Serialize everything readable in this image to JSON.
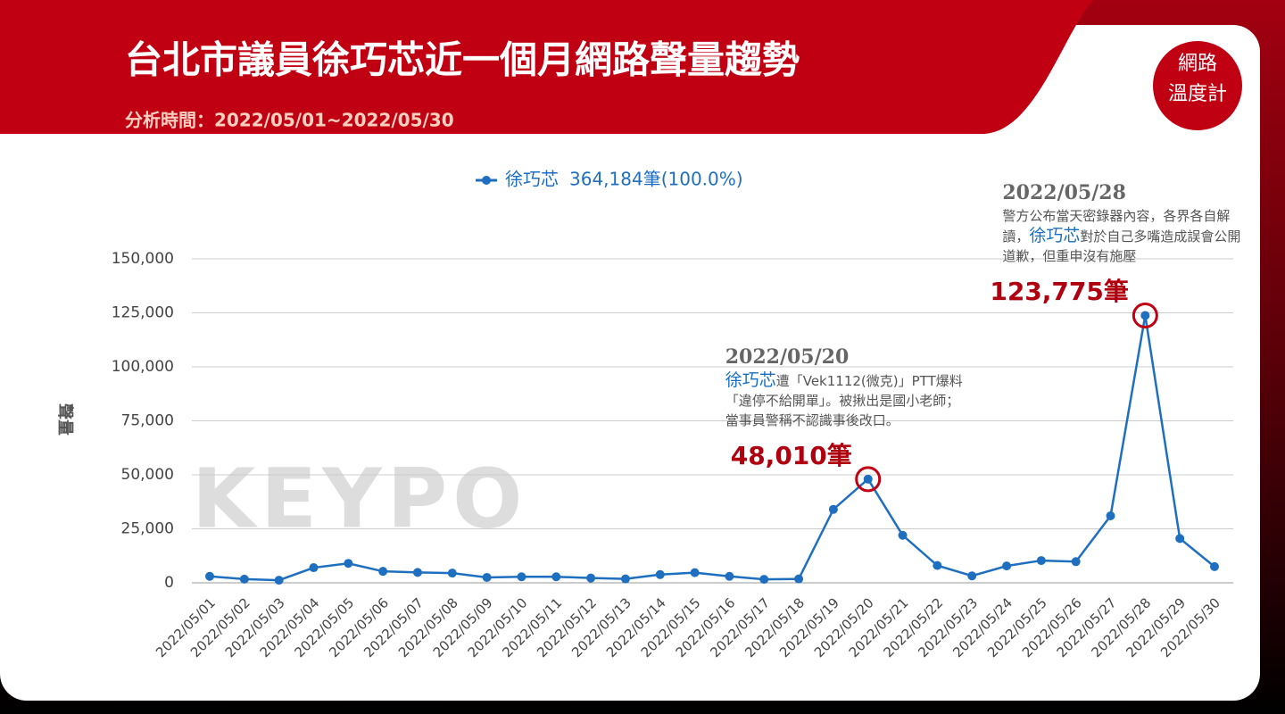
{
  "chart_data": {
    "type": "line",
    "title": "台北市議員徐巧芯近一個月網路聲量趨勢",
    "subtitle": "分析時間：2022/05/01~2022/05/30",
    "logo": [
      "網路",
      "溫度計"
    ],
    "watermark": "KEYPO",
    "y_label": "聲量",
    "categories": [
      "2022/05/01",
      "2022/05/02",
      "2022/05/03",
      "2022/05/04",
      "2022/05/05",
      "2022/05/06",
      "2022/05/07",
      "2022/05/08",
      "2022/05/09",
      "2022/05/10",
      "2022/05/11",
      "2022/05/12",
      "2022/05/13",
      "2022/05/14",
      "2022/05/15",
      "2022/05/16",
      "2022/05/17",
      "2022/05/18",
      "2022/05/19",
      "2022/05/20",
      "2022/05/21",
      "2022/05/22",
      "2022/05/23",
      "2022/05/24",
      "2022/05/25",
      "2022/05/26",
      "2022/05/27",
      "2022/05/28",
      "2022/05/29",
      "2022/05/30"
    ],
    "series": [
      {
        "name": "徐巧芯",
        "legend_note": "364,184筆(100.0%)",
        "color": "#1f6fc0",
        "values": [
          3000,
          1700,
          1200,
          7000,
          9000,
          5300,
          4800,
          4500,
          2500,
          2800,
          2800,
          2200,
          1800,
          3800,
          4700,
          3000,
          1600,
          1800,
          34000,
          48010,
          22000,
          8000,
          3200,
          7800,
          10300,
          9800,
          31000,
          123775,
          20500,
          7500
        ],
        "value_labels": [
          null,
          null,
          null,
          null,
          null,
          null,
          null,
          null,
          null,
          null,
          null,
          null,
          null,
          null,
          null,
          null,
          null,
          null,
          null,
          "48,010筆",
          null,
          null,
          null,
          null,
          null,
          null,
          null,
          "123,775筆",
          null,
          null
        ]
      }
    ],
    "ylim": [
      0,
      150000
    ],
    "yticks": [
      0,
      {
        "value": 25000,
        "label": "25,000"
      },
      {
        "value": 50000,
        "label": "50,000"
      },
      {
        "value": 75000,
        "label": "75,000"
      },
      {
        "value": 100000,
        "label": "100,000"
      },
      {
        "value": 125000,
        "label": "125,000"
      },
      {
        "value": 150000,
        "label": "150,000"
      }
    ],
    "grid": true,
    "annotations": [
      {
        "title": "2022/05/20",
        "text": [
          {
            "text": "徐巧芯",
            "highlight": true
          },
          {
            "text": "遭「Vek1112(微克)」PTT爆料「違停不給開單」。被揪出是國小老師；當事員警稱不認識事後改口。"
          }
        ]
      },
      {
        "title": "2022/05/28",
        "text": [
          {
            "text": "警方公布當天密錄器內容，各界各自解讀，"
          },
          {
            "text": "徐巧芯",
            "highlight": true
          },
          {
            "text": "對於自己多嘴造成誤會公開道歉，但重申沒有施壓"
          }
        ]
      }
    ]
  }
}
